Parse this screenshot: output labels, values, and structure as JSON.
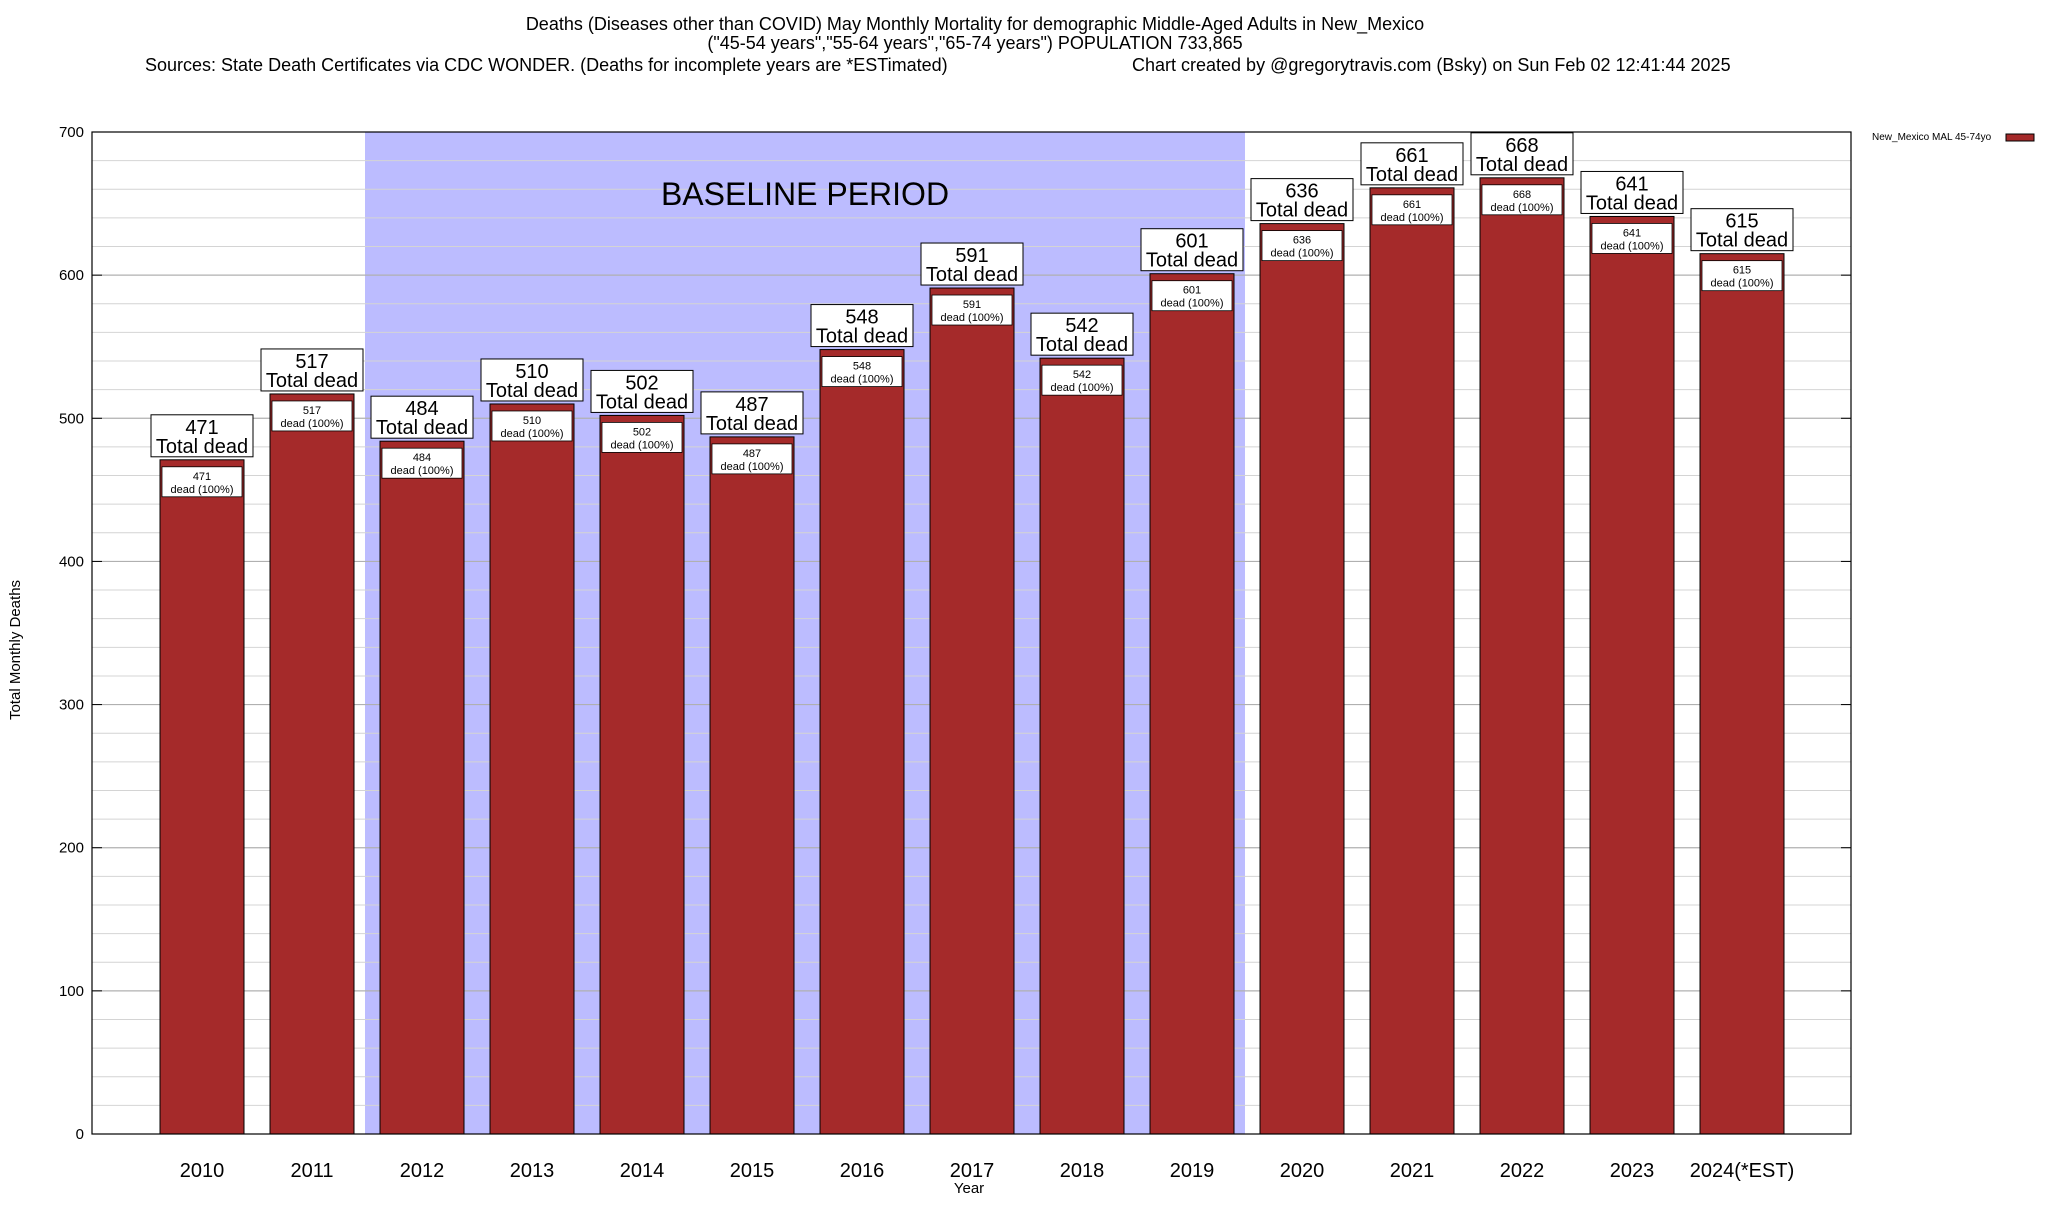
{
  "chart_data": {
    "type": "bar",
    "title_lines": [
      "Deaths (Diseases other than COVID) May Monthly Mortality for demographic Middle-Aged Adults in New_Mexico",
      "(\"45-54 years\",\"55-64 years\",\"65-74 years\") POPULATION 733,865"
    ],
    "sources": "Sources: State Death Certificates via CDC WONDER. (Deaths for incomplete years are *ESTimated)",
    "credit": "Chart created by @gregorytravis.com (Bsky) on Sun Feb 02 12:41:44 2025",
    "xlabel": "Year",
    "ylabel": "Total Monthly Deaths",
    "ylim": [
      0,
      700
    ],
    "y_ticks": [
      0,
      100,
      200,
      300,
      400,
      500,
      600,
      700
    ],
    "y_minor_step": 20,
    "categories": [
      "2010",
      "2011",
      "2012",
      "2013",
      "2014",
      "2015",
      "2016",
      "2017",
      "2018",
      "2019",
      "2020",
      "2021",
      "2022",
      "2023",
      "2024(*EST)"
    ],
    "series": [
      {
        "name": "New_Mexico MAL 45-74yo",
        "color": "#a52a2a",
        "values": [
          471,
          517,
          484,
          510,
          502,
          487,
          548,
          591,
          542,
          601,
          636,
          661,
          668,
          641,
          615
        ]
      }
    ],
    "total_label": "Total dead",
    "inner_label": "dead (100%)",
    "baseline_region": {
      "label": "BASELINE PERIOD",
      "start_category": "2012",
      "end_category": "2019",
      "color": "#bcbcff"
    },
    "grid": true,
    "legend_position": "top-right, outside plot"
  }
}
